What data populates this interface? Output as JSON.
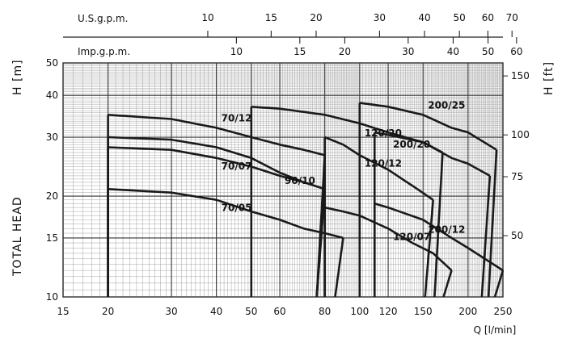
{
  "chart_data": {
    "type": "line",
    "title": "",
    "xscale": "log",
    "yscale": "log",
    "xlim": [
      15,
      250
    ],
    "ylim": [
      10,
      50
    ],
    "xlabel": "Q [l/min]",
    "ylabel": "TOTAL HEAD",
    "ylabel_left_unit": "H [m]",
    "ylabel_right_unit": "H [ft]",
    "x_ticks": [
      15,
      20,
      30,
      40,
      50,
      60,
      80,
      100,
      120,
      150,
      200,
      250
    ],
    "y_ticks": [
      10,
      15,
      20,
      30,
      40,
      50
    ],
    "right_ticks_ft": [
      50,
      75,
      100,
      150
    ],
    "top_axes": [
      {
        "label": "U.S.g.p.m.",
        "ticks": [
          10,
          15,
          20,
          30,
          40,
          50,
          60,
          70
        ],
        "lpm_per_unit": 3.785
      },
      {
        "label": "Imp.g.p.m.",
        "ticks": [
          10,
          15,
          20,
          30,
          40,
          50,
          60
        ],
        "lpm_per_unit": 4.546
      }
    ],
    "grid": true,
    "series": [
      {
        "name": "70/12",
        "x": [
          20,
          30,
          40,
          50,
          60,
          70,
          80
        ],
        "y": [
          35,
          34,
          32,
          30,
          28.5,
          27.5,
          26.5
        ]
      },
      {
        "name": "70/07",
        "x": [
          20,
          30,
          40,
          50,
          60,
          70,
          80
        ],
        "y": [
          28,
          27.5,
          26,
          24.5,
          23,
          22,
          21
        ]
      },
      {
        "name": "70/05",
        "x": [
          20,
          30,
          40,
          50,
          60,
          70,
          80,
          90
        ],
        "y": [
          21,
          20.5,
          19.5,
          18,
          17,
          16,
          15.5,
          15
        ]
      },
      {
        "name": "90/10",
        "x": [
          20,
          30,
          40,
          50,
          60,
          70,
          80
        ],
        "y": [
          30,
          29.5,
          28,
          26,
          23.5,
          22,
          21
        ]
      },
      {
        "name": "120/20",
        "x": [
          50,
          60,
          80,
          100,
          120,
          150,
          170
        ],
        "y": [
          37,
          36.5,
          35,
          33,
          31,
          29,
          27
        ]
      },
      {
        "name": "120/12",
        "x": [
          80,
          90,
          100,
          120,
          140,
          160
        ],
        "y": [
          30,
          28.5,
          26.5,
          24,
          21.5,
          19.5
        ]
      },
      {
        "name": "120/07",
        "x": [
          80,
          90,
          100,
          120,
          140,
          160,
          180
        ],
        "y": [
          18.5,
          18,
          17.5,
          16,
          14.5,
          13.5,
          12
        ]
      },
      {
        "name": "200/25",
        "x": [
          100,
          120,
          150,
          180,
          200,
          240
        ],
        "y": [
          38,
          37,
          35,
          32,
          31,
          27.5
        ]
      },
      {
        "name": "200/20",
        "x": [
          110,
          120,
          150,
          180,
          200,
          230
        ],
        "y": [
          31,
          30.5,
          29,
          26,
          25,
          23
        ]
      },
      {
        "name": "200/12",
        "x": [
          110,
          120,
          150,
          180,
          200,
          250
        ],
        "y": [
          19,
          18.5,
          17,
          15,
          14,
          12
        ]
      }
    ]
  }
}
